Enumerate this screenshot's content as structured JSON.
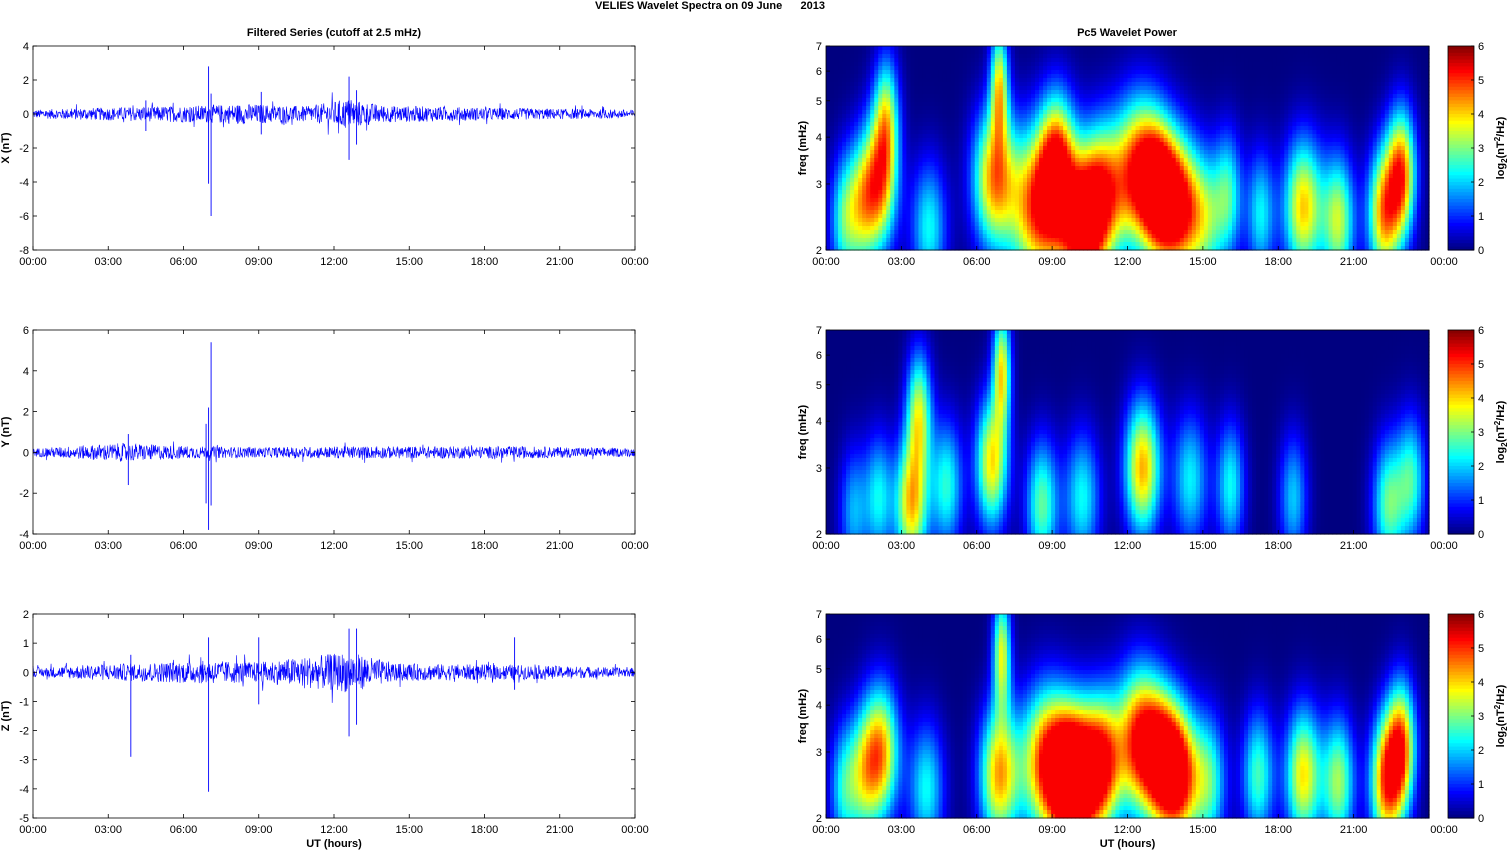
{
  "figure": {
    "title": "VELIES Wavelet Spectra on 09 June      2013",
    "left_column_title": "Filtered Series (cutoff at 2.5 mHz)",
    "right_column_title": "Pc5 Wavelet Power",
    "colorbar_label_prefix": "log",
    "colorbar_label_sub": "2",
    "colorbar_label_mid": "(nT",
    "colorbar_label_sup": "2",
    "colorbar_label_suffix": "/Hz)"
  },
  "chart_data": [
    {
      "type": "line",
      "panel": "series-x",
      "title": "Filtered Series (cutoff at 2.5 mHz)",
      "xlabel": "",
      "ylabel": "X (nT)",
      "xlim": [
        "00:00",
        "00:00"
      ],
      "ylim": [
        -8,
        4
      ],
      "x_ticks": [
        "00:00",
        "03:00",
        "06:00",
        "09:00",
        "12:00",
        "15:00",
        "18:00",
        "21:00",
        "00:00"
      ],
      "y_ticks": [
        "4",
        "2",
        "0",
        "-2",
        "-4",
        "-6",
        "-8"
      ],
      "series_color": "#0000ff",
      "noise_profile": [
        {
          "hour": 0,
          "amp": 0.25
        },
        {
          "hour": 2,
          "amp": 0.35
        },
        {
          "hour": 6.5,
          "amp": 0.5
        },
        {
          "hour": 8.5,
          "amp": 0.6
        },
        {
          "hour": 11,
          "amp": 0.45
        },
        {
          "hour": 12.5,
          "amp": 0.9
        },
        {
          "hour": 14,
          "amp": 0.5
        },
        {
          "hour": 19,
          "amp": 0.35
        },
        {
          "hour": 24,
          "amp": 0.25
        }
      ],
      "spikes": [
        {
          "hour": 7.0,
          "min": -4.1,
          "max": 2.8
        },
        {
          "hour": 7.1,
          "min": -6.0,
          "max": 1.2
        },
        {
          "hour": 12.6,
          "min": -2.7,
          "max": 2.2
        },
        {
          "hour": 12.9,
          "min": -1.8,
          "max": 1.4
        },
        {
          "hour": 4.5,
          "min": -1.0,
          "max": 0.8
        },
        {
          "hour": 9.1,
          "min": -1.2,
          "max": 1.3
        }
      ]
    },
    {
      "type": "line",
      "panel": "series-y",
      "xlabel": "",
      "ylabel": "Y (nT)",
      "ylim": [
        -4,
        6
      ],
      "x_ticks": [
        "00:00",
        "03:00",
        "06:00",
        "09:00",
        "12:00",
        "15:00",
        "18:00",
        "21:00",
        "00:00"
      ],
      "y_ticks": [
        "6",
        "4",
        "2",
        "0",
        "-2",
        "-4"
      ],
      "series_color": "#0000ff",
      "noise_profile": [
        {
          "hour": 0,
          "amp": 0.2
        },
        {
          "hour": 3.5,
          "amp": 0.45
        },
        {
          "hour": 6.5,
          "amp": 0.3
        },
        {
          "hour": 9,
          "amp": 0.25
        },
        {
          "hour": 12.5,
          "amp": 0.3
        },
        {
          "hour": 19.5,
          "amp": 0.3
        },
        {
          "hour": 24,
          "amp": 0.2
        }
      ],
      "spikes": [
        {
          "hour": 3.8,
          "min": -1.6,
          "max": 0.9
        },
        {
          "hour": 7.0,
          "min": -3.8,
          "max": 2.2
        },
        {
          "hour": 7.1,
          "min": -2.6,
          "max": 5.4
        },
        {
          "hour": 6.9,
          "min": -2.5,
          "max": 1.4
        }
      ]
    },
    {
      "type": "line",
      "panel": "series-z",
      "xlabel": "UT (hours)",
      "ylabel": "Z (nT)",
      "ylim": [
        -5,
        2
      ],
      "x_ticks": [
        "00:00",
        "03:00",
        "06:00",
        "09:00",
        "12:00",
        "15:00",
        "18:00",
        "21:00",
        "00:00"
      ],
      "y_ticks": [
        "2",
        "1",
        "0",
        "-1",
        "-2",
        "-3",
        "-4",
        "-5"
      ],
      "series_color": "#0000ff",
      "noise_profile": [
        {
          "hour": 0,
          "amp": 0.15
        },
        {
          "hour": 2,
          "amp": 0.25
        },
        {
          "hour": 7,
          "amp": 0.4
        },
        {
          "hour": 9,
          "amp": 0.35
        },
        {
          "hour": 12.6,
          "amp": 0.7
        },
        {
          "hour": 14.5,
          "amp": 0.3
        },
        {
          "hour": 19.5,
          "amp": 0.25
        },
        {
          "hour": 24,
          "amp": 0.15
        }
      ],
      "spikes": [
        {
          "hour": 3.9,
          "min": -2.9,
          "max": 0.6
        },
        {
          "hour": 7.0,
          "min": -4.1,
          "max": 1.2
        },
        {
          "hour": 12.6,
          "min": -2.2,
          "max": 1.5
        },
        {
          "hour": 12.9,
          "min": -1.8,
          "max": 1.5
        },
        {
          "hour": 9.0,
          "min": -1.1,
          "max": 1.2
        },
        {
          "hour": 19.2,
          "min": -0.6,
          "max": 1.2
        }
      ]
    },
    {
      "type": "heatmap",
      "panel": "wavelet-x",
      "title": "Pc5 Wavelet Power",
      "xlabel": "",
      "ylabel": "freq (mHz)",
      "ylim": [
        2,
        7
      ],
      "y_scale": "log",
      "x_ticks": [
        "00:00",
        "03:00",
        "06:00",
        "09:00",
        "12:00",
        "15:00",
        "18:00",
        "21:00",
        "00:00"
      ],
      "y_ticks": [
        "7",
        "6",
        "5",
        "4",
        "3",
        "2"
      ],
      "colorbar": {
        "min": 0,
        "max": 6,
        "ticks": [
          "6",
          "5",
          "4",
          "3",
          "2",
          "1",
          "0"
        ],
        "colormap": "jet"
      },
      "blobs": [
        {
          "hour": 0.7,
          "freq": 2.4,
          "power": 2.5,
          "width": 0.4
        },
        {
          "hour": 1.4,
          "freq": 2.6,
          "power": 3.0,
          "width": 0.45
        },
        {
          "hour": 2.1,
          "freq": 3.0,
          "power": 4.6,
          "width": 0.5
        },
        {
          "hour": 2.4,
          "freq": 4.5,
          "power": 3.5,
          "width": 0.35
        },
        {
          "hour": 4.1,
          "freq": 2.3,
          "power": 2.6,
          "width": 0.5
        },
        {
          "hour": 6.7,
          "freq": 3.1,
          "power": 4.8,
          "width": 0.6
        },
        {
          "hour": 6.9,
          "freq": 5.5,
          "power": 4.0,
          "width": 0.25
        },
        {
          "hour": 8.5,
          "freq": 2.6,
          "power": 5.8,
          "width": 0.8
        },
        {
          "hour": 9.2,
          "freq": 3.5,
          "power": 4.5,
          "width": 0.5
        },
        {
          "hour": 10.2,
          "freq": 2.3,
          "power": 6.0,
          "width": 0.6
        },
        {
          "hour": 11.0,
          "freq": 2.8,
          "power": 4.8,
          "width": 0.6
        },
        {
          "hour": 12.5,
          "freq": 3.2,
          "power": 6.0,
          "width": 0.7
        },
        {
          "hour": 13.3,
          "freq": 2.8,
          "power": 5.0,
          "width": 0.5
        },
        {
          "hour": 14.1,
          "freq": 2.6,
          "power": 5.5,
          "width": 0.55
        },
        {
          "hour": 15.1,
          "freq": 2.4,
          "power": 3.0,
          "width": 0.5
        },
        {
          "hour": 16.0,
          "freq": 2.8,
          "power": 2.8,
          "width": 0.4
        },
        {
          "hour": 17.3,
          "freq": 2.5,
          "power": 2.5,
          "width": 0.4
        },
        {
          "hour": 19.0,
          "freq": 2.6,
          "power": 4.6,
          "width": 0.55
        },
        {
          "hour": 20.4,
          "freq": 2.4,
          "power": 3.8,
          "width": 0.45
        },
        {
          "hour": 22.2,
          "freq": 2.5,
          "power": 4.8,
          "width": 0.45
        },
        {
          "hour": 22.9,
          "freq": 3.2,
          "power": 5.2,
          "width": 0.4
        }
      ]
    },
    {
      "type": "heatmap",
      "panel": "wavelet-y",
      "xlabel": "",
      "ylabel": "freq (mHz)",
      "ylim": [
        2,
        7
      ],
      "y_scale": "log",
      "x_ticks": [
        "00:00",
        "03:00",
        "06:00",
        "09:00",
        "12:00",
        "15:00",
        "18:00",
        "21:00",
        "00:00"
      ],
      "y_ticks": [
        "7",
        "6",
        "5",
        "4",
        "3",
        "2"
      ],
      "colorbar": {
        "min": 0,
        "max": 6,
        "ticks": [
          "6",
          "5",
          "4",
          "3",
          "2",
          "1",
          "0"
        ],
        "colormap": "jet"
      },
      "blobs": [
        {
          "hour": 1.1,
          "freq": 2.3,
          "power": 2.0,
          "width": 0.4
        },
        {
          "hour": 2.1,
          "freq": 2.5,
          "power": 2.5,
          "width": 0.4
        },
        {
          "hour": 3.4,
          "freq": 2.4,
          "power": 4.6,
          "width": 0.45
        },
        {
          "hour": 3.7,
          "freq": 4.2,
          "power": 3.8,
          "width": 0.35
        },
        {
          "hour": 4.8,
          "freq": 2.7,
          "power": 2.8,
          "width": 0.45
        },
        {
          "hour": 6.6,
          "freq": 3.1,
          "power": 4.4,
          "width": 0.45
        },
        {
          "hour": 7.0,
          "freq": 5.5,
          "power": 4.2,
          "width": 0.25
        },
        {
          "hour": 8.6,
          "freq": 2.4,
          "power": 3.2,
          "width": 0.45
        },
        {
          "hour": 10.2,
          "freq": 2.5,
          "power": 2.6,
          "width": 0.5
        },
        {
          "hour": 12.6,
          "freq": 3.0,
          "power": 4.8,
          "width": 0.5
        },
        {
          "hour": 14.5,
          "freq": 2.8,
          "power": 2.5,
          "width": 0.5
        },
        {
          "hour": 16.1,
          "freq": 2.7,
          "power": 2.6,
          "width": 0.4
        },
        {
          "hour": 18.6,
          "freq": 2.5,
          "power": 2.2,
          "width": 0.4
        },
        {
          "hour": 22.4,
          "freq": 2.4,
          "power": 3.2,
          "width": 0.45
        },
        {
          "hour": 23.3,
          "freq": 2.8,
          "power": 2.8,
          "width": 0.4
        }
      ]
    },
    {
      "type": "heatmap",
      "panel": "wavelet-z",
      "xlabel": "UT (hours)",
      "ylabel": "freq (mHz)",
      "ylim": [
        2,
        7
      ],
      "y_scale": "log",
      "x_ticks": [
        "00:00",
        "03:00",
        "06:00",
        "09:00",
        "12:00",
        "15:00",
        "18:00",
        "21:00",
        "00:00"
      ],
      "y_ticks": [
        "7",
        "6",
        "5",
        "4",
        "3",
        "2"
      ],
      "colorbar": {
        "min": 0,
        "max": 6,
        "ticks": [
          "6",
          "5",
          "4",
          "3",
          "2",
          "1",
          "0"
        ],
        "colormap": "jet"
      },
      "blobs": [
        {
          "hour": 0.7,
          "freq": 2.4,
          "power": 2.4,
          "width": 0.4
        },
        {
          "hour": 1.5,
          "freq": 2.6,
          "power": 3.0,
          "width": 0.45
        },
        {
          "hour": 2.2,
          "freq": 3.0,
          "power": 4.6,
          "width": 0.5
        },
        {
          "hour": 4.0,
          "freq": 2.4,
          "power": 2.6,
          "width": 0.5
        },
        {
          "hour": 6.9,
          "freq": 2.6,
          "power": 4.8,
          "width": 0.55
        },
        {
          "hour": 7.0,
          "freq": 5.5,
          "power": 4.0,
          "width": 0.25
        },
        {
          "hour": 8.8,
          "freq": 2.8,
          "power": 5.8,
          "width": 0.7
        },
        {
          "hour": 9.6,
          "freq": 2.5,
          "power": 5.0,
          "width": 0.5
        },
        {
          "hour": 10.3,
          "freq": 2.6,
          "power": 6.0,
          "width": 0.55
        },
        {
          "hour": 11.1,
          "freq": 2.8,
          "power": 4.5,
          "width": 0.5
        },
        {
          "hour": 12.5,
          "freq": 3.2,
          "power": 6.0,
          "width": 0.65
        },
        {
          "hour": 13.4,
          "freq": 2.8,
          "power": 5.2,
          "width": 0.5
        },
        {
          "hour": 14.1,
          "freq": 2.6,
          "power": 5.4,
          "width": 0.5
        },
        {
          "hour": 15.2,
          "freq": 2.5,
          "power": 3.2,
          "width": 0.5
        },
        {
          "hour": 17.2,
          "freq": 2.6,
          "power": 3.0,
          "width": 0.45
        },
        {
          "hour": 19.0,
          "freq": 2.6,
          "power": 4.4,
          "width": 0.5
        },
        {
          "hour": 20.4,
          "freq": 2.5,
          "power": 3.6,
          "width": 0.45
        },
        {
          "hour": 22.3,
          "freq": 2.5,
          "power": 5.2,
          "width": 0.45
        },
        {
          "hour": 22.9,
          "freq": 3.1,
          "power": 5.0,
          "width": 0.4
        }
      ]
    }
  ]
}
